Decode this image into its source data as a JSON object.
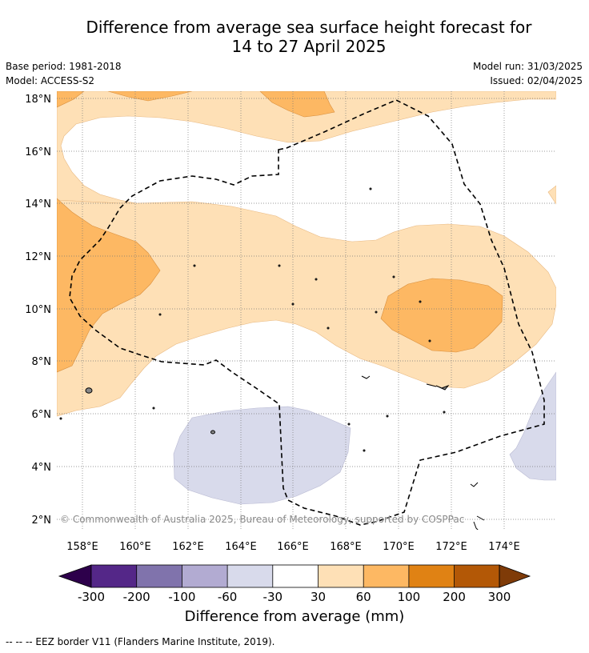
{
  "title_line1": "Difference from average sea surface height forecast for",
  "title_line2": "14 to 27 April 2025",
  "base_period": "Base period: 1981-2018",
  "model": "Model: ACCESS-S2",
  "model_run": "Model run: 31/03/2025",
  "issued": "Issued: 02/04/2025",
  "map": {
    "lat_labels": [
      "18°N",
      "16°N",
      "14°N",
      "12°N",
      "10°N",
      "8°N",
      "6°N",
      "4°N",
      "2°N"
    ],
    "lon_labels": [
      "158°E",
      "160°E",
      "162°E",
      "164°E",
      "166°E",
      "168°E",
      "170°E",
      "172°E",
      "174°E"
    ],
    "copyright": "© Commonwealth of Australia 2025, Bureau of Meteorology, supported by COSPPac"
  },
  "colorbar": {
    "ticks": [
      "-300",
      "-200",
      "-100",
      "-60",
      "-30",
      "30",
      "60",
      "100",
      "200",
      "300"
    ],
    "label": "Difference from average (mm)",
    "colors": {
      "below": "#2d004b",
      "neg_300_200": "#542788",
      "neg_200_100": "#8073ac",
      "neg_100_60": "#b2abd2",
      "neg_60_30": "#d8daeb",
      "neutral": "#ffffff",
      "pos_30_60": "#fee0b6",
      "pos_60_100": "#fdb863",
      "pos_100_200": "#e08214",
      "pos_200_300": "#b35806",
      "above": "#7f3b08"
    }
  },
  "footer": "--  --  -- EEZ border V11 (Flanders Marine Institute, 2019)."
}
